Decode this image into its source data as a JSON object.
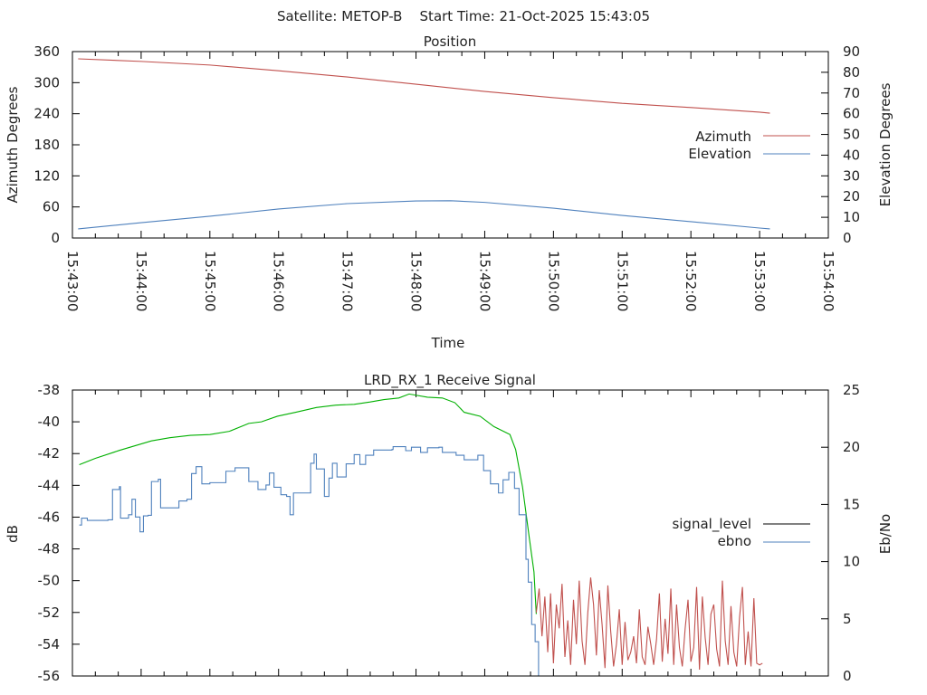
{
  "header": {
    "title": "Satellite: METOP-B    Start Time: 21-Oct-2025 15:43:05"
  },
  "colors": {
    "azimuth": "#c0504d",
    "elevation": "#4f81bd",
    "signal_locked": "#00b000",
    "signal_unlocked": "#c0504d",
    "ebno": "#4f81bd",
    "signal_legend": "#000000"
  },
  "chart_data": [
    {
      "type": "line",
      "title": "Position",
      "xlabel": "Time",
      "ylabel": "Azimuth Degrees",
      "y2label": "Elevation Degrees",
      "x_unit": "seconds after 15:43:00",
      "xlim": [
        0,
        660
      ],
      "ylim": [
        0,
        360
      ],
      "y2lim": [
        0,
        90
      ],
      "xticks": [
        "15:43:00",
        "15:44:00",
        "15:45:00",
        "15:46:00",
        "15:47:00",
        "15:48:00",
        "15:49:00",
        "15:50:00",
        "15:51:00",
        "15:52:00",
        "15:53:00",
        "15:54:00"
      ],
      "yticks": [
        "0",
        "60",
        "120",
        "180",
        "240",
        "300",
        "360"
      ],
      "y2ticks": [
        "0",
        "10",
        "20",
        "30",
        "40",
        "50",
        "60",
        "70",
        "80",
        "90"
      ],
      "legend_position": "right",
      "series": [
        {
          "name": "Azimuth",
          "axis": "y",
          "x": [
            5,
            60,
            120,
            180,
            240,
            300,
            360,
            420,
            480,
            540,
            600,
            609
          ],
          "values": [
            346,
            341,
            334,
            323,
            311,
            297,
            283,
            271,
            260,
            252,
            243,
            241
          ]
        },
        {
          "name": "Elevation",
          "axis": "y2",
          "x": [
            5,
            60,
            120,
            180,
            240,
            300,
            330,
            360,
            420,
            480,
            540,
            600,
            609
          ],
          "values": [
            4.4,
            7.4,
            10.5,
            14,
            16.6,
            17.9,
            18.0,
            17.2,
            14.4,
            10.9,
            7.9,
            4.8,
            4.4
          ]
        }
      ]
    },
    {
      "type": "line",
      "title": "LRD_RX_1 Receive Signal",
      "ylabel": "dB",
      "y2label": "Eb/No",
      "x_unit": "seconds after 15:43:00",
      "xlim": [
        0,
        660
      ],
      "ylim": [
        -56,
        -38
      ],
      "y2lim": [
        0,
        25
      ],
      "yticks": [
        "-56",
        "-54",
        "-52",
        "-50",
        "-48",
        "-46",
        "-44",
        "-42",
        "-40",
        "-38"
      ],
      "y2ticks": [
        "0",
        "5",
        "10",
        "15",
        "20",
        "25"
      ],
      "legend_position": "right",
      "series": [
        {
          "name": "signal_level",
          "axis": "y",
          "segment": "locked",
          "x": [
            6,
            20,
            41,
            55,
            69,
            85,
            103,
            120,
            137,
            154,
            165,
            179,
            195,
            213,
            230,
            246,
            260,
            272,
            285,
            294,
            310,
            323,
            334,
            342,
            356,
            368,
            382,
            387,
            393,
            399,
            403,
            405
          ],
          "values": [
            -42.7,
            -42.3,
            -41.8,
            -41.5,
            -41.2,
            -41.0,
            -40.85,
            -40.8,
            -40.6,
            -40.1,
            -40.0,
            -39.65,
            -39.4,
            -39.1,
            -38.95,
            -38.9,
            -38.75,
            -38.6,
            -38.5,
            -38.25,
            -38.45,
            -38.5,
            -38.8,
            -39.4,
            -39.65,
            -40.3,
            -40.8,
            -41.75,
            -44.1,
            -47.35,
            -49.45,
            -52.1
          ]
        },
        {
          "name": "signal_level",
          "axis": "y",
          "segment": "unlocked",
          "x_start": 405,
          "x_step": 2.5,
          "values": [
            -52.0,
            -50.5,
            -53.5,
            -51.0,
            -54.5,
            -50.8,
            -55.2,
            -51.5,
            -53.0,
            -50.2,
            -54.8,
            -52.5,
            -55.3,
            -51.2,
            -54.0,
            -50.0,
            -53.8,
            -55.3,
            -52.0,
            -49.8,
            -51.5,
            -54.7,
            -50.6,
            -52.8,
            -55.5,
            -50.3,
            -53.2,
            -55.4,
            -54.0,
            -51.8,
            -55.3,
            -52.6,
            -55.0,
            -54.5,
            -53.5,
            -55.2,
            -51.8,
            -54.8,
            -55.3,
            -52.9,
            -54.0,
            -55.3,
            -53.7,
            -50.8,
            -55.1,
            -52.4,
            -54.6,
            -50.5,
            -55.3,
            -51.5,
            -54.2,
            -55.4,
            -53.0,
            -51.2,
            -55.1,
            -54.2,
            -50.4,
            -55.6,
            -51.0,
            -53.6,
            -55.3,
            -52.1,
            -51.5,
            -54.3,
            -55.4,
            -50.0,
            -53.8,
            -55.3,
            -51.6,
            -54.5,
            -55.4,
            -52.3,
            -50.4,
            -55.3,
            -53.2,
            -55.4,
            -51.1,
            -55.2,
            -55.3,
            -55.2
          ]
        },
        {
          "name": "ebno",
          "axis": "y2",
          "step": true,
          "x": [
            6,
            8,
            13,
            31,
            35,
            41,
            42,
            49,
            52,
            55,
            59,
            62,
            66,
            69,
            75,
            77,
            90,
            93,
            100,
            104,
            108,
            113,
            120,
            134,
            142,
            148,
            154,
            162,
            169,
            172,
            176,
            182,
            187,
            190,
            193,
            204,
            208,
            211,
            213,
            220,
            224,
            227,
            231,
            239,
            246,
            251,
            256,
            263,
            279,
            280,
            291,
            296,
            304,
            310,
            320,
            323,
            335,
            342,
            354,
            359,
            365,
            372,
            376,
            381,
            386,
            390,
            396,
            398,
            401,
            404,
            407
          ],
          "values": [
            13.2,
            13.8,
            13.6,
            13.65,
            16.3,
            16.55,
            13.8,
            14.1,
            15.45,
            13.9,
            12.6,
            14.0,
            14.05,
            17.0,
            17.2,
            14.7,
            14.7,
            15.3,
            15.45,
            17.7,
            18.3,
            16.8,
            16.9,
            17.9,
            18.2,
            18.2,
            17.0,
            16.3,
            16.7,
            17.75,
            16.5,
            15.85,
            15.7,
            14.1,
            16.0,
            16.0,
            18.6,
            19.4,
            18.1,
            15.7,
            17.3,
            18.6,
            17.4,
            18.55,
            19.35,
            18.5,
            19.3,
            19.75,
            19.8,
            20.05,
            19.7,
            20.0,
            19.55,
            19.95,
            20.0,
            19.55,
            19.3,
            18.9,
            19.3,
            17.95,
            16.8,
            16.0,
            17.15,
            17.8,
            16.4,
            14.1,
            10.2,
            8.2,
            4.5,
            3.0,
            0
          ]
        }
      ]
    }
  ]
}
